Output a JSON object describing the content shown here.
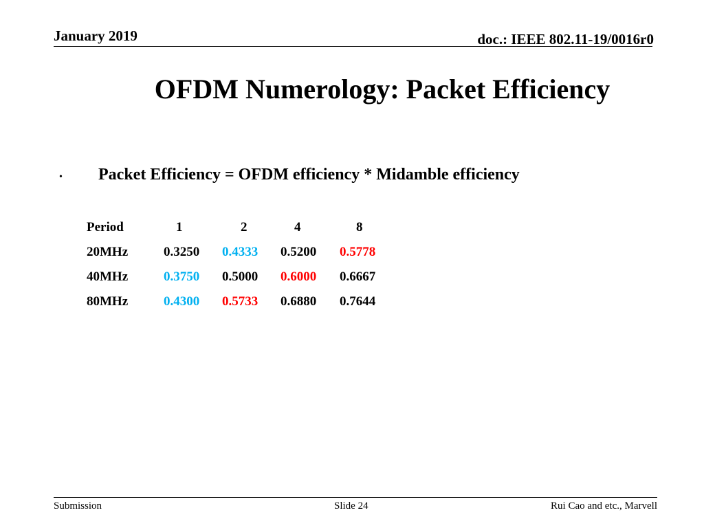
{
  "header": {
    "date": "January 2019",
    "doc_id": "doc.: IEEE 802.11-19/0016r0"
  },
  "title": "OFDM Numerology: Packet Efficiency",
  "bullet": {
    "marker": "•",
    "text": "Packet Efficiency = OFDM efficiency * Midamble efficiency"
  },
  "table": {
    "header": [
      "Period",
      "1",
      "2",
      "4",
      "8"
    ],
    "rows": [
      {
        "label": "20MHz",
        "values": [
          "0.3250",
          "0.4333",
          "0.5200",
          "0.5778"
        ],
        "colors": [
          "black",
          "blue",
          "black",
          "red"
        ]
      },
      {
        "label": "40MHz",
        "values": [
          "0.3750",
          "0.5000",
          "0.6000",
          "0.6667"
        ],
        "colors": [
          "blue",
          "black",
          "red",
          "black"
        ]
      },
      {
        "label": "80MHz",
        "values": [
          "0.4300",
          "0.5733",
          "0.6880",
          "0.7644"
        ],
        "colors": [
          "blue",
          "red",
          "black",
          "black"
        ]
      }
    ]
  },
  "colors": {
    "black": "#000000",
    "blue": "#00b0f0",
    "red": "#ff0000"
  },
  "footer": {
    "left": "Submission",
    "center": "Slide 24",
    "right": "Rui Cao and etc., Marvell"
  }
}
